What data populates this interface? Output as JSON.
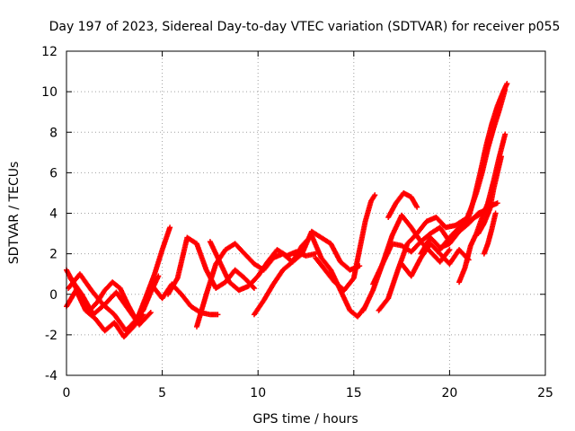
{
  "chart_data": {
    "type": "scatter",
    "title": "Day 197 of 2023, Sidereal Day-to-day VTEC variation (SDTVAR) for receiver p055",
    "xlabel": "GPS time / hours",
    "ylabel": "SDTVAR / TECUs",
    "xlim": [
      0,
      25
    ],
    "ylim": [
      -4,
      12
    ],
    "xticks": [
      0,
      5,
      10,
      15,
      20,
      25
    ],
    "yticks": [
      -4,
      -2,
      0,
      2,
      4,
      6,
      8,
      10,
      12
    ],
    "grid": true,
    "legend": "none",
    "marker": "+",
    "color": "#ff0000",
    "series": [
      {
        "x": [
          0.0,
          0.4,
          0.8,
          1.2,
          1.6,
          2.0,
          2.4,
          2.8,
          3.2,
          3.6,
          4.0,
          4.4,
          4.8
        ],
        "y": [
          1.2,
          0.5,
          -0.3,
          -0.8,
          -0.4,
          0.2,
          0.6,
          0.3,
          -0.5,
          -1.2,
          -0.8,
          0.1,
          0.9
        ]
      },
      {
        "x": [
          0.0,
          0.5,
          1.0,
          1.5,
          2.0,
          2.5,
          3.0,
          3.5,
          4.0
        ],
        "y": [
          -0.6,
          0.2,
          -0.8,
          -1.2,
          -1.8,
          -1.4,
          -2.1,
          -1.6,
          -1.0
        ]
      },
      {
        "x": [
          0.2,
          0.8,
          1.4,
          2.0,
          2.6,
          3.2,
          3.8,
          4.4
        ],
        "y": [
          0.8,
          0.0,
          -1.0,
          -0.5,
          0.1,
          -0.7,
          -1.5,
          -0.9
        ]
      },
      {
        "x": [
          0.1,
          0.7,
          1.3,
          1.9,
          2.5,
          3.1,
          3.7,
          4.2,
          4.6,
          5.0,
          5.4
        ],
        "y": [
          0.3,
          1.0,
          0.2,
          -0.5,
          -1.0,
          -1.8,
          -1.2,
          0.0,
          1.0,
          2.2,
          3.3
        ]
      },
      {
        "x": [
          4.5,
          5.0,
          5.5,
          6.0,
          6.5,
          7.0,
          7.5,
          7.9
        ],
        "y": [
          0.4,
          -0.2,
          0.5,
          0.0,
          -0.6,
          -0.9,
          -1.0,
          -1.0
        ]
      },
      {
        "x": [
          5.3,
          5.8,
          6.3,
          6.8,
          7.3,
          7.8,
          8.3,
          8.8,
          9.3,
          9.8
        ],
        "y": [
          0.0,
          0.8,
          2.8,
          2.5,
          1.2,
          0.3,
          0.6,
          1.2,
          0.8,
          0.3
        ]
      },
      {
        "x": [
          6.8,
          7.3,
          7.8,
          8.3,
          8.8,
          9.3,
          9.8,
          10.3,
          10.8,
          11.3,
          11.8
        ],
        "y": [
          -1.6,
          0.0,
          1.5,
          2.2,
          2.5,
          2.0,
          1.5,
          1.2,
          1.8,
          2.0,
          1.6
        ]
      },
      {
        "x": [
          7.5,
          8.0,
          8.5,
          9.0,
          9.5,
          10.0,
          10.5,
          11.0,
          11.5,
          12.0,
          12.5,
          13.0
        ],
        "y": [
          2.6,
          1.6,
          0.6,
          0.2,
          0.4,
          0.9,
          1.6,
          2.2,
          1.9,
          2.1,
          1.9,
          2.0
        ]
      },
      {
        "x": [
          9.8,
          10.3,
          10.8,
          11.3,
          11.8,
          12.3,
          12.8,
          13.3,
          13.8,
          14.3,
          14.8,
          15.3
        ],
        "y": [
          -1.0,
          -0.3,
          0.5,
          1.2,
          1.6,
          2.0,
          3.1,
          2.8,
          2.5,
          1.6,
          1.2,
          1.4
        ]
      },
      {
        "x": [
          11.8,
          12.3,
          12.8,
          13.3,
          13.8,
          14.3,
          14.8,
          15.2,
          15.6
        ],
        "y": [
          1.6,
          2.4,
          2.9,
          1.8,
          1.2,
          0.2,
          -0.8,
          -1.1,
          -0.6
        ]
      },
      {
        "x": [
          13.0,
          13.5,
          14.0,
          14.5,
          15.0,
          15.3,
          15.6,
          15.9,
          16.1
        ],
        "y": [
          1.8,
          1.2,
          0.6,
          0.2,
          0.8,
          2.2,
          3.6,
          4.6,
          4.9
        ]
      },
      {
        "x": [
          15.5,
          16.0,
          16.5,
          17.0,
          17.5,
          18.0,
          18.5,
          19.0,
          19.5,
          20.0
        ],
        "y": [
          -0.8,
          0.2,
          1.5,
          2.5,
          2.4,
          2.1,
          2.6,
          2.1,
          1.6,
          2.2
        ]
      },
      {
        "x": [
          16.0,
          16.5,
          17.0,
          17.5,
          18.0,
          18.5,
          19.0,
          19.5,
          20.0
        ],
        "y": [
          0.5,
          1.5,
          2.9,
          3.9,
          3.3,
          2.6,
          3.0,
          3.3,
          2.6
        ]
      },
      {
        "x": [
          16.3,
          16.8,
          17.3,
          17.8,
          18.3,
          18.8,
          19.3,
          19.8,
          20.3,
          20.8
        ],
        "y": [
          -0.8,
          -0.2,
          1.2,
          2.5,
          3.0,
          3.6,
          3.8,
          3.3,
          3.4,
          3.7
        ]
      },
      {
        "x": [
          16.8,
          17.2,
          17.6,
          18.0,
          18.3
        ],
        "y": [
          3.8,
          4.5,
          5.0,
          4.8,
          4.3
        ]
      },
      {
        "x": [
          17.5,
          18.0,
          18.5,
          19.0,
          19.5,
          20.0,
          20.5,
          21.0
        ],
        "y": [
          1.5,
          0.9,
          1.8,
          2.5,
          2.0,
          1.5,
          2.2,
          1.7
        ]
      },
      {
        "x": [
          18.5,
          19.0,
          19.5,
          20.0,
          20.5,
          21.0,
          21.5,
          22.0
        ],
        "y": [
          2.0,
          2.8,
          2.3,
          2.5,
          3.1,
          3.5,
          4.0,
          4.2
        ]
      },
      {
        "x": [
          19.5,
          20.0,
          20.5,
          21.0,
          21.5,
          22.0,
          22.5
        ],
        "y": [
          2.2,
          2.8,
          3.3,
          3.6,
          3.9,
          4.3,
          4.5
        ]
      },
      {
        "x": [
          20.5,
          20.8,
          21.1,
          21.4,
          21.7,
          22.0,
          22.3,
          22.6,
          22.9
        ],
        "y": [
          0.6,
          1.3,
          2.4,
          3.0,
          3.8,
          4.5,
          5.6,
          6.8,
          7.9
        ]
      },
      {
        "x": [
          21.0,
          21.3,
          21.6,
          21.9,
          22.2,
          22.5,
          22.8,
          23.0
        ],
        "y": [
          3.8,
          4.8,
          6.0,
          7.3,
          8.4,
          9.3,
          10.0,
          10.4
        ]
      },
      {
        "x": [
          20.8,
          21.1,
          21.4,
          21.7,
          22.0,
          22.3,
          22.6,
          22.9
        ],
        "y": [
          3.5,
          4.2,
          5.0,
          6.0,
          7.2,
          8.2,
          9.1,
          10.1
        ]
      },
      {
        "x": [
          21.5,
          21.8,
          22.1,
          22.3,
          22.5,
          22.7
        ],
        "y": [
          3.0,
          3.5,
          4.2,
          5.2,
          6.0,
          6.8
        ]
      },
      {
        "x": [
          21.8,
          22.0,
          22.2,
          22.4
        ],
        "y": [
          2.0,
          2.5,
          3.2,
          4.0
        ]
      }
    ]
  }
}
